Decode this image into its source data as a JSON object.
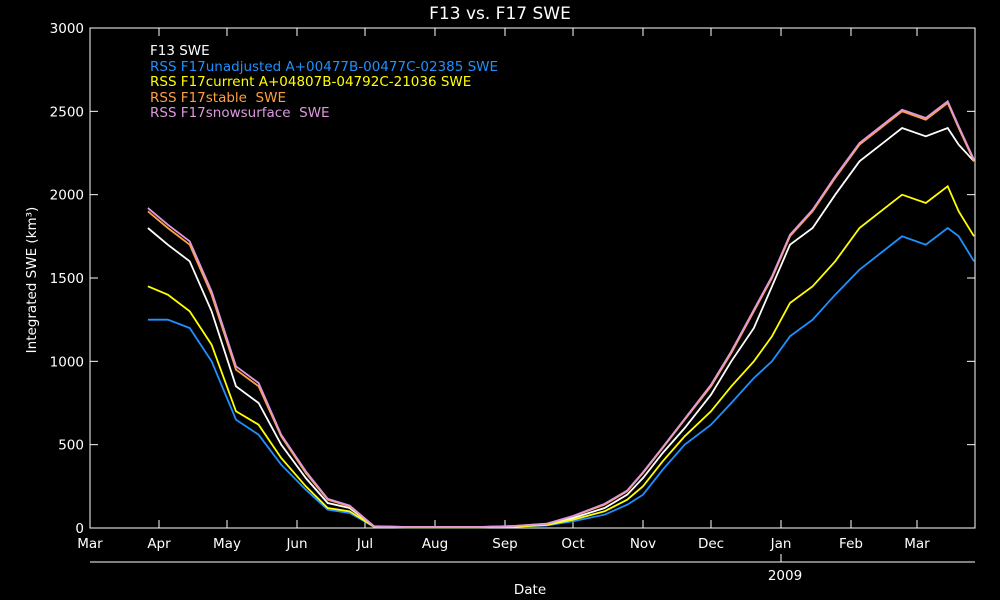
{
  "chart_data": {
    "type": "line",
    "title": "F13 vs. F17 SWE",
    "xlabel": "Date",
    "ylabel": "Integrated SWE (km³)",
    "ylim": [
      0,
      3000
    ],
    "yticks": [
      0,
      500,
      1000,
      1500,
      2000,
      2500,
      3000
    ],
    "x_tick_labels": [
      "Mar",
      "Apr",
      "May",
      "Jun",
      "Jul",
      "Aug",
      "Sep",
      "Oct",
      "Nov",
      "Dec",
      "Jan",
      "Feb",
      "Mar"
    ],
    "year_label": "2009",
    "x": [
      "Mar 27",
      "Apr 5",
      "Apr 15",
      "Apr 25",
      "May 5",
      "May 15",
      "May 25",
      "Jun 5",
      "Jun 15",
      "Jun 25",
      "Jul 5",
      "Jul 20",
      "Aug 5",
      "Aug 20",
      "Sep 5",
      "Sep 20",
      "Oct 1",
      "Oct 15",
      "Oct 25",
      "Nov 1",
      "Nov 10",
      "Nov 20",
      "Dec 1",
      "Dec 10",
      "Dec 20",
      "Dec 28",
      "Jan 5",
      "Jan 15",
      "Jan 25",
      "Feb 5",
      "Feb 15",
      "Feb 25",
      "Mar 5",
      "Mar 15",
      "Mar 20",
      "Mar 27"
    ],
    "series": [
      {
        "name": "F13 SWE",
        "color": "#ffffff",
        "values": [
          1800,
          1700,
          1600,
          1300,
          850,
          750,
          500,
          300,
          150,
          120,
          10,
          5,
          5,
          5,
          10,
          20,
          60,
          120,
          200,
          300,
          450,
          600,
          800,
          1000,
          1200,
          1450,
          1700,
          1800,
          2000,
          2200,
          2300,
          2400,
          2350,
          2400,
          2300,
          2200
        ]
      },
      {
        "name": "RSS F17unadjusted A+00477B-00477C-02385 SWE",
        "color": "#1e90ff",
        "values": [
          1250,
          1250,
          1200,
          1000,
          650,
          560,
          380,
          230,
          110,
          90,
          8,
          4,
          4,
          4,
          8,
          15,
          40,
          80,
          140,
          200,
          350,
          500,
          620,
          750,
          900,
          1000,
          1150,
          1250,
          1400,
          1550,
          1650,
          1750,
          1700,
          1800,
          1750,
          1600
        ]
      },
      {
        "name": "RSS F17current A+04807B-04792C-21036 SWE",
        "color": "#ffff00",
        "values": [
          1450,
          1400,
          1300,
          1100,
          700,
          620,
          420,
          250,
          120,
          100,
          8,
          4,
          4,
          4,
          8,
          18,
          50,
          100,
          170,
          250,
          400,
          550,
          700,
          850,
          1000,
          1150,
          1350,
          1450,
          1600,
          1800,
          1900,
          2000,
          1950,
          2050,
          1900,
          1750
        ]
      },
      {
        "name": "RSS F17stable  SWE",
        "color": "#ff9f40",
        "values": [
          1900,
          1800,
          1700,
          1400,
          950,
          850,
          550,
          330,
          170,
          130,
          10,
          6,
          6,
          6,
          12,
          25,
          70,
          140,
          220,
          330,
          480,
          650,
          850,
          1050,
          1300,
          1500,
          1750,
          1900,
          2100,
          2300,
          2400,
          2500,
          2450,
          2550,
          2400,
          2200
        ]
      },
      {
        "name": "RSS F17snowsurface  SWE",
        "color": "#dd99dd",
        "values": [
          1920,
          1820,
          1720,
          1420,
          970,
          870,
          560,
          340,
          175,
          135,
          11,
          6,
          6,
          6,
          12,
          26,
          72,
          145,
          225,
          335,
          485,
          655,
          860,
          1060,
          1310,
          1510,
          1760,
          1910,
          2110,
          2310,
          2410,
          2510,
          2460,
          2560,
          2410,
          2210
        ]
      }
    ]
  }
}
